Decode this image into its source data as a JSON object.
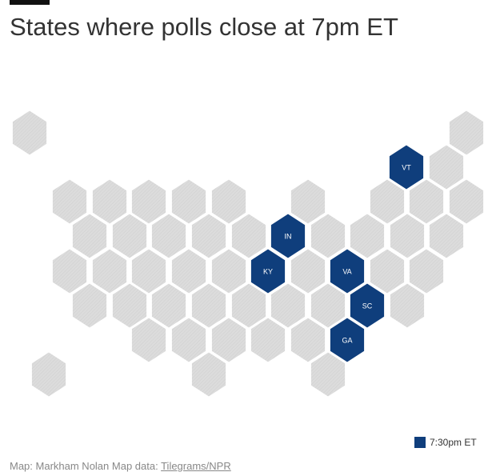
{
  "title": "States where polls close at 7pm ET",
  "legend": {
    "label": "7:30pm ET",
    "color": "#0f3e7c"
  },
  "states": [
    {
      "label": "VT"
    },
    {
      "label": "IN"
    },
    {
      "label": "KY"
    },
    {
      "label": "VA"
    },
    {
      "label": "SC"
    },
    {
      "label": "GA"
    }
  ],
  "credit": {
    "text": "Map: Markham Nolan Map data:",
    "link": "Tilegrams/NPR"
  }
}
